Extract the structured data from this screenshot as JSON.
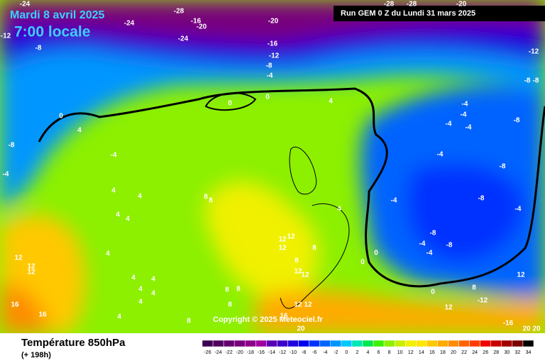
{
  "header": {
    "date": "Mardi 8 avril 2025",
    "time": "7:00 locale",
    "run": "Run GEM 0 Z du Lundi 31 mars 2025"
  },
  "copyright": "Copyright © 2025 Meteociel.fr",
  "footer": {
    "title": "Température 850hPa",
    "lead": "(+ 198h)"
  },
  "contour_labels": [
    -24,
    -28,
    -24,
    -16,
    -20,
    -20,
    -28,
    -28,
    -20,
    -12,
    -8,
    -24,
    -16,
    -12,
    -8,
    -4,
    -12,
    -8,
    -8,
    0,
    4,
    0,
    0,
    4,
    -8,
    -4,
    -4,
    -4,
    -4,
    -4,
    -4,
    -8,
    -4,
    -8,
    -4,
    -8,
    -4,
    4,
    4,
    8,
    8,
    4,
    4,
    4,
    12,
    12,
    12,
    8,
    8,
    4,
    12,
    12,
    12,
    -8,
    -4,
    -8,
    -4,
    0,
    0,
    12,
    12,
    4,
    4,
    4,
    4,
    4,
    8,
    8,
    8,
    0,
    8,
    12,
    -12,
    12,
    12,
    12,
    16,
    16,
    4,
    8,
    16,
    20,
    -16,
    20,
    20
  ],
  "colorbar": {
    "ticks": [
      -26,
      -24,
      -22,
      -20,
      -18,
      -16,
      -14,
      -12,
      -10,
      -8,
      -6,
      -4,
      -2,
      0,
      2,
      4,
      6,
      8,
      10,
      12,
      14,
      16,
      18,
      20,
      22,
      24,
      26,
      28,
      30,
      32,
      34
    ],
    "colors": [
      "#3c0050",
      "#50005f",
      "#64006e",
      "#78007d",
      "#8c008c",
      "#a000a0",
      "#5a00b4",
      "#3c00c8",
      "#1e00dc",
      "#0000f0",
      "#0032ff",
      "#0064ff",
      "#0096ff",
      "#00c8ff",
      "#00e6b4",
      "#00e650",
      "#3cf000",
      "#8cf000",
      "#c8f000",
      "#f0f000",
      "#ffe600",
      "#ffc800",
      "#ffaa00",
      "#ff8c00",
      "#ff6400",
      "#ff3c00",
      "#f00000",
      "#c80000",
      "#a00000",
      "#780000",
      "#000000"
    ]
  }
}
